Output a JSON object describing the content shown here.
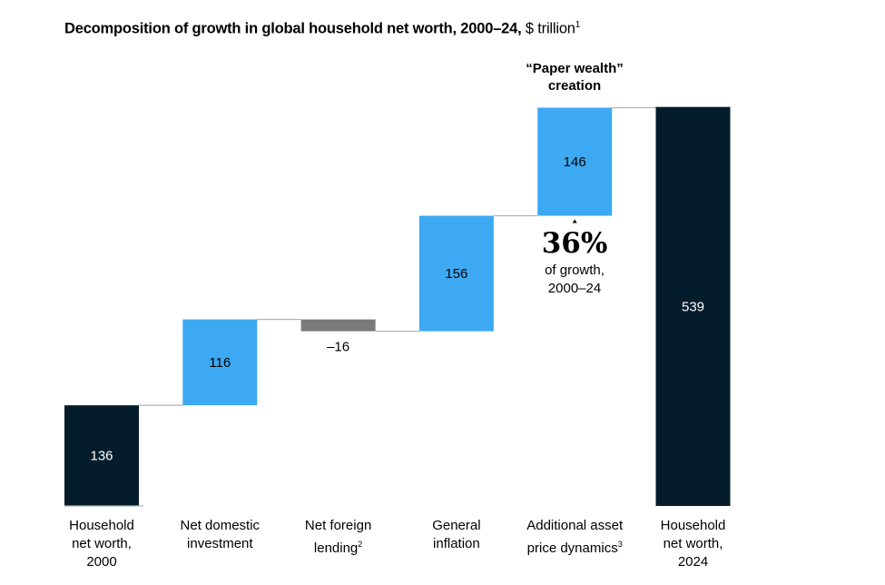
{
  "chart_data": {
    "type": "waterfall",
    "title": "Decomposition of growth in global household net worth, 2000–24,",
    "unit": "$ trillion",
    "title_footnote": "1",
    "categories": [
      {
        "label": "Household net worth, 2000",
        "lines": [
          "Household",
          "net worth,",
          "2000"
        ],
        "footnote": ""
      },
      {
        "label": "Net domestic investment",
        "lines": [
          "Net domestic",
          "investment"
        ],
        "footnote": ""
      },
      {
        "label": "Net foreign lending",
        "lines": [
          "Net foreign",
          "lending"
        ],
        "footnote": "2"
      },
      {
        "label": "General inflation",
        "lines": [
          "General",
          "inflation"
        ],
        "footnote": ""
      },
      {
        "label": "Additional asset price dynamics",
        "lines": [
          "Additional asset",
          "price dynamics"
        ],
        "footnote": "3"
      },
      {
        "label": "Household net worth, 2024",
        "lines": [
          "Household",
          "net worth,",
          "2024"
        ],
        "footnote": ""
      }
    ],
    "values": [
      136,
      116,
      -16,
      156,
      146,
      539
    ],
    "value_labels": [
      "136",
      "116",
      "–16",
      "156",
      "146",
      "539"
    ],
    "kinds": [
      "total",
      "increase",
      "decrease",
      "increase",
      "increase",
      "total"
    ],
    "colors": {
      "total": "#051c2c",
      "increase": "#3ca9f2",
      "decrease": "#7a7a7a",
      "connector": "#b3b3b3"
    },
    "annotation": {
      "heading_lines": [
        "“Paper wealth”",
        "creation"
      ],
      "percent": "36%",
      "sub_lines": [
        "of growth,",
        "2000–24"
      ]
    }
  }
}
